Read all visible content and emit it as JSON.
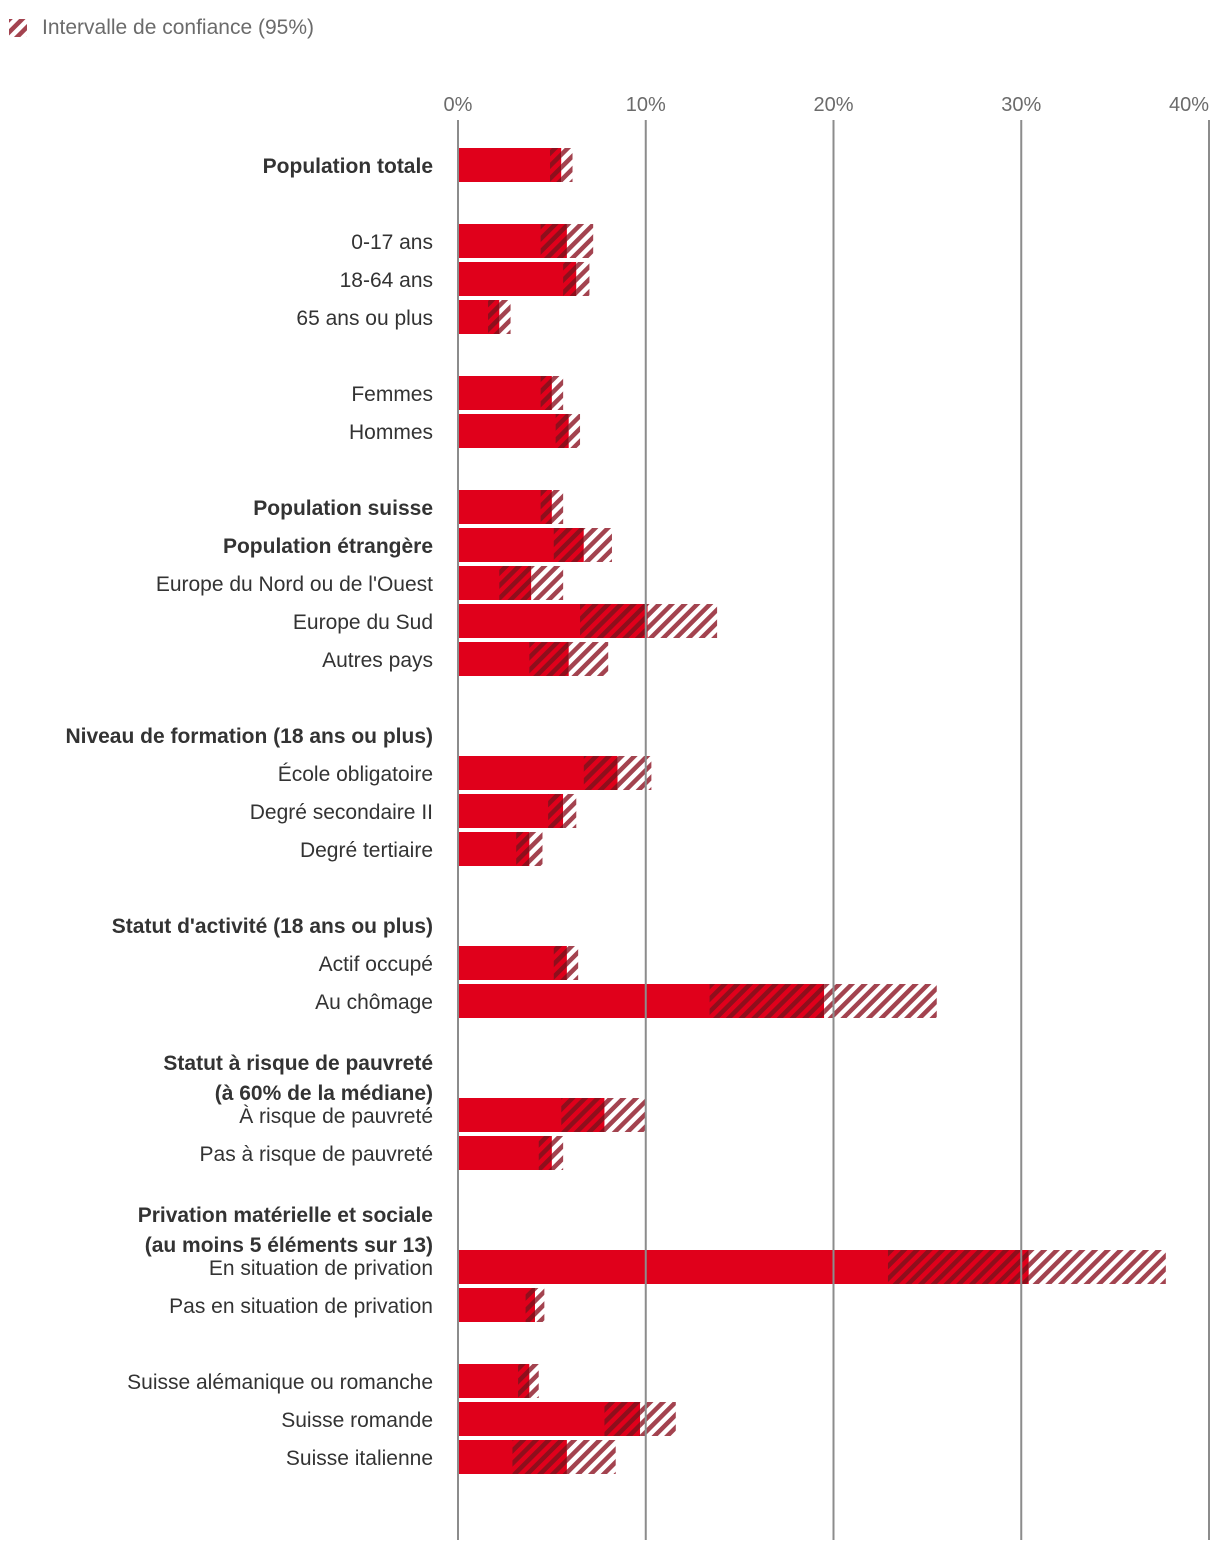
{
  "chart_data": {
    "type": "bar",
    "orientation": "horizontal",
    "legend": {
      "label": "Intervalle de confiance (95%)",
      "placement": "top-left"
    },
    "xlim": [
      0,
      40
    ],
    "xticks": [
      0,
      10,
      20,
      30,
      40
    ],
    "xtick_labels": [
      "0%",
      "10%",
      "20%",
      "30%",
      "40%"
    ],
    "colors": {
      "bar": "#e0001b",
      "ci": "#a3434f",
      "grid": "#8c8c8c"
    },
    "rows": [
      {
        "label": "Population totale",
        "bold": true,
        "value": 5.5,
        "ci_low": 4.9,
        "ci_high": 6.1
      },
      {
        "label": "",
        "spacer": true
      },
      {
        "label": "0-17 ans",
        "value": 5.8,
        "ci_low": 4.4,
        "ci_high": 7.2
      },
      {
        "label": "18-64 ans",
        "value": 6.3,
        "ci_low": 5.6,
        "ci_high": 7.0
      },
      {
        "label": "65 ans ou plus",
        "value": 2.2,
        "ci_low": 1.6,
        "ci_high": 2.8
      },
      {
        "label": "",
        "spacer": true
      },
      {
        "label": "Femmes",
        "value": 5.0,
        "ci_low": 4.4,
        "ci_high": 5.6
      },
      {
        "label": "Hommes",
        "value": 5.9,
        "ci_low": 5.2,
        "ci_high": 6.5
      },
      {
        "label": "",
        "spacer": true
      },
      {
        "label": "Population suisse",
        "bold": true,
        "value": 5.0,
        "ci_low": 4.4,
        "ci_high": 5.6
      },
      {
        "label": "Population étrangère",
        "bold": true,
        "value": 6.7,
        "ci_low": 5.1,
        "ci_high": 8.2
      },
      {
        "label": "Europe du Nord ou de l'Ouest",
        "value": 3.9,
        "ci_low": 2.2,
        "ci_high": 5.6
      },
      {
        "label": "Europe du Sud",
        "value": 10.1,
        "ci_low": 6.5,
        "ci_high": 13.8
      },
      {
        "label": "Autres pays",
        "value": 5.9,
        "ci_low": 3.8,
        "ci_high": 8.0
      },
      {
        "label": "",
        "spacer": true
      },
      {
        "label": "Niveau de formation (18 ans ou plus)",
        "bold": true,
        "header": true
      },
      {
        "label": "École obligatoire",
        "value": 8.5,
        "ci_low": 6.7,
        "ci_high": 10.3
      },
      {
        "label": "Degré secondaire II",
        "value": 5.6,
        "ci_low": 4.8,
        "ci_high": 6.3
      },
      {
        "label": "Degré tertiaire",
        "value": 3.8,
        "ci_low": 3.1,
        "ci_high": 4.5
      },
      {
        "label": "",
        "spacer": true
      },
      {
        "label": "Statut d'activité (18 ans ou plus)",
        "bold": true,
        "header": true
      },
      {
        "label": "Actif occupé",
        "value": 5.8,
        "ci_low": 5.1,
        "ci_high": 6.4
      },
      {
        "label": "Au chômage",
        "value": 19.5,
        "ci_low": 13.4,
        "ci_high": 25.5
      },
      {
        "label": "",
        "spacer": true
      },
      {
        "label": "Statut à risque de pauvreté",
        "label2": "(à 60% de la médiane)",
        "bold": true,
        "header": true
      },
      {
        "label": "À risque de pauvreté",
        "value": 7.8,
        "ci_low": 5.5,
        "ci_high": 10.0
      },
      {
        "label": "Pas à risque de pauvreté",
        "value": 5.0,
        "ci_low": 4.3,
        "ci_high": 5.6
      },
      {
        "label": "",
        "spacer": true
      },
      {
        "label": "Privation matérielle et sociale",
        "label2": "(au moins 5 éléments sur 13)",
        "bold": true,
        "header": true
      },
      {
        "label": "En situation de privation",
        "value": 30.4,
        "ci_low": 22.9,
        "ci_high": 37.7
      },
      {
        "label": "Pas en situation de privation",
        "value": 4.1,
        "ci_low": 3.6,
        "ci_high": 4.6
      },
      {
        "label": "",
        "spacer": true
      },
      {
        "label": "Suisse alémanique ou romanche",
        "value": 3.8,
        "ci_low": 3.2,
        "ci_high": 4.3
      },
      {
        "label": "Suisse romande",
        "value": 9.7,
        "ci_low": 7.8,
        "ci_high": 11.6
      },
      {
        "label": "Suisse italienne",
        "value": 5.8,
        "ci_low": 2.9,
        "ci_high": 8.4
      }
    ]
  }
}
